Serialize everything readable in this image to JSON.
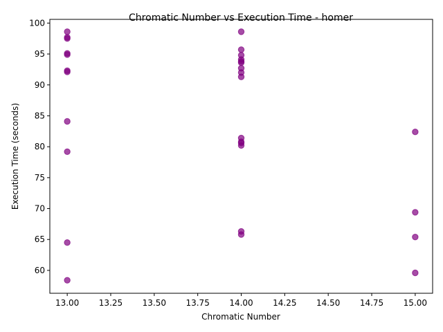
{
  "chart_data": {
    "type": "scatter",
    "title": "Chromatic Number vs Execution Time - homer",
    "xlabel": "Chromatic Number",
    "ylabel": "Execution Time (seconds)",
    "xlim": [
      12.9,
      15.1
    ],
    "ylim": [
      56.3,
      100.6
    ],
    "xticks": [
      "13.00",
      "13.25",
      "13.50",
      "13.75",
      "14.00",
      "14.25",
      "14.50",
      "14.75",
      "15.00"
    ],
    "yticks": [
      "60",
      "65",
      "70",
      "75",
      "80",
      "85",
      "90",
      "95",
      "100"
    ],
    "grid": false,
    "legend": "none",
    "marker_color": "#800080",
    "marker_alpha": 0.7,
    "points": [
      {
        "x": 13,
        "y": 98.6
      },
      {
        "x": 13,
        "y": 97.7
      },
      {
        "x": 13,
        "y": 97.5
      },
      {
        "x": 13,
        "y": 95.1
      },
      {
        "x": 13,
        "y": 94.9
      },
      {
        "x": 13,
        "y": 92.3
      },
      {
        "x": 13,
        "y": 92.1
      },
      {
        "x": 13,
        "y": 84.1
      },
      {
        "x": 13,
        "y": 79.2
      },
      {
        "x": 13,
        "y": 64.5
      },
      {
        "x": 13,
        "y": 58.4
      },
      {
        "x": 14,
        "y": 98.6
      },
      {
        "x": 14,
        "y": 95.7
      },
      {
        "x": 14,
        "y": 94.8
      },
      {
        "x": 14,
        "y": 94.1
      },
      {
        "x": 14,
        "y": 93.8
      },
      {
        "x": 14,
        "y": 93.6
      },
      {
        "x": 14,
        "y": 92.7
      },
      {
        "x": 14,
        "y": 92.0
      },
      {
        "x": 14,
        "y": 91.3
      },
      {
        "x": 14,
        "y": 81.4
      },
      {
        "x": 14,
        "y": 80.8
      },
      {
        "x": 14,
        "y": 80.6
      },
      {
        "x": 14,
        "y": 80.2
      },
      {
        "x": 14,
        "y": 66.3
      },
      {
        "x": 14,
        "y": 65.8
      },
      {
        "x": 15,
        "y": 82.4
      },
      {
        "x": 15,
        "y": 69.4
      },
      {
        "x": 15,
        "y": 65.4
      },
      {
        "x": 15,
        "y": 59.6
      }
    ]
  }
}
